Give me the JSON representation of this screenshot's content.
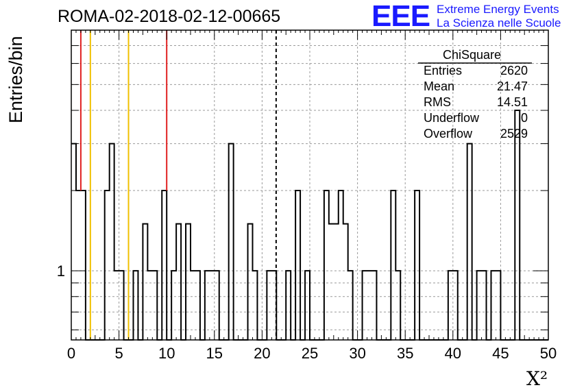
{
  "header": {
    "title": "ROMA-02-2018-02-12-00665",
    "logo": "EEE",
    "logo_line1": "Extreme Energy Events",
    "logo_line2": "La Scienza nelle Scuole"
  },
  "stats": {
    "title": "ChiSquare",
    "rows": [
      {
        "label": "Entries",
        "value": "2620"
      },
      {
        "label": "Mean",
        "value": "21.47"
      },
      {
        "label": "RMS",
        "value": "14.51"
      },
      {
        "label": "Underflow",
        "value": "0"
      },
      {
        "label": "Overflow",
        "value": "2529"
      }
    ]
  },
  "chart_data": {
    "type": "bar",
    "style": "step-histogram",
    "xlabel": "X²",
    "ylabel": "Entries/bin",
    "xlim": [
      0,
      50
    ],
    "ylim": [
      0.55,
      8.0
    ],
    "y_scale": "log",
    "grid": true,
    "x_ticks": [
      0,
      5,
      10,
      15,
      20,
      25,
      30,
      35,
      40,
      45,
      50
    ],
    "y_tick_labels": [
      "1"
    ],
    "bin_width": 0.5,
    "bins": [
      {
        "x0": 0.0,
        "v": 3
      },
      {
        "x0": 0.5,
        "v": 2
      },
      {
        "x0": 1.0,
        "v": 2
      },
      {
        "x0": 3.5,
        "v": 2
      },
      {
        "x0": 4.0,
        "v": 3
      },
      {
        "x0": 4.5,
        "v": 1
      },
      {
        "x0": 5.0,
        "v": 1
      },
      {
        "x0": 6.5,
        "v": 1
      },
      {
        "x0": 7.5,
        "v": 1.5
      },
      {
        "x0": 8.0,
        "v": 1
      },
      {
        "x0": 8.5,
        "v": 1
      },
      {
        "x0": 9.5,
        "v": 2
      },
      {
        "x0": 10.5,
        "v": 1
      },
      {
        "x0": 11.0,
        "v": 1.5
      },
      {
        "x0": 12.0,
        "v": 1.5
      },
      {
        "x0": 12.5,
        "v": 1
      },
      {
        "x0": 13.0,
        "v": 1
      },
      {
        "x0": 14.0,
        "v": 1
      },
      {
        "x0": 14.5,
        "v": 1
      },
      {
        "x0": 15.0,
        "v": 1
      },
      {
        "x0": 16.5,
        "v": 3
      },
      {
        "x0": 18.5,
        "v": 1.5
      },
      {
        "x0": 19.0,
        "v": 1
      },
      {
        "x0": 20.5,
        "v": 1
      },
      {
        "x0": 21.0,
        "v": 1
      },
      {
        "x0": 22.5,
        "v": 1
      },
      {
        "x0": 23.5,
        "v": 2
      },
      {
        "x0": 24.5,
        "v": 1
      },
      {
        "x0": 26.5,
        "v": 2
      },
      {
        "x0": 27.0,
        "v": 1.5
      },
      {
        "x0": 27.5,
        "v": 1.5
      },
      {
        "x0": 28.0,
        "v": 2
      },
      {
        "x0": 28.5,
        "v": 1.5
      },
      {
        "x0": 29.0,
        "v": 1
      },
      {
        "x0": 30.5,
        "v": 1
      },
      {
        "x0": 31.0,
        "v": 1
      },
      {
        "x0": 31.5,
        "v": 1
      },
      {
        "x0": 33.5,
        "v": 2
      },
      {
        "x0": 34.0,
        "v": 1
      },
      {
        "x0": 36.0,
        "v": 2
      },
      {
        "x0": 39.5,
        "v": 1
      },
      {
        "x0": 40.0,
        "v": 1
      },
      {
        "x0": 41.5,
        "v": 3
      },
      {
        "x0": 42.5,
        "v": 1
      },
      {
        "x0": 43.0,
        "v": 1
      },
      {
        "x0": 44.0,
        "v": 1
      },
      {
        "x0": 44.5,
        "v": 1
      },
      {
        "x0": 46.5,
        "v": 4
      }
    ],
    "vertical_lines": [
      {
        "x": 1.0,
        "color": "#e02020",
        "style": "solid"
      },
      {
        "x": 2.0,
        "color": "#f0c000",
        "style": "solid"
      },
      {
        "x": 6.0,
        "color": "#f0c000",
        "style": "solid"
      },
      {
        "x": 10.0,
        "color": "#e02020",
        "style": "solid"
      },
      {
        "x": 21.47,
        "color": "#000000",
        "style": "dashed"
      }
    ]
  }
}
